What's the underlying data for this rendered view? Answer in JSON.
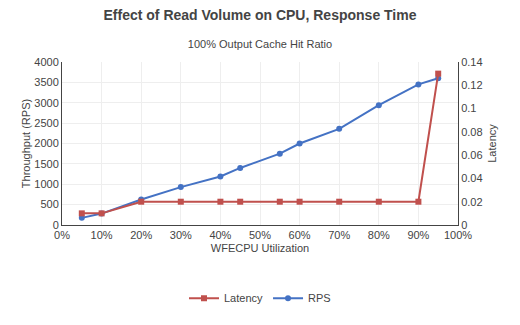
{
  "chart_data": {
    "type": "line",
    "title": "Effect of Read Volume on CPU, Response Time",
    "subtitle": "100% Output Cache Hit Ratio",
    "xlabel": "WFECPU Utilization",
    "ylabel": "Throughput (RPS)",
    "y2label": "Latency",
    "x": [
      0.05,
      0.1,
      0.2,
      0.3,
      0.4,
      0.45,
      0.55,
      0.6,
      0.7,
      0.8,
      0.9,
      0.95
    ],
    "series": [
      {
        "name": "RPS",
        "color": "#4472C4",
        "marker": "circle",
        "values": [
          175,
          280,
          625,
          930,
          1190,
          1400,
          1750,
          2000,
          2360,
          2940,
          3450,
          3600
        ]
      },
      {
        "name": "Latency",
        "color": "#C0504D",
        "marker": "square",
        "axis": "y2",
        "values": [
          0.01,
          0.01,
          0.02,
          0.02,
          0.02,
          0.02,
          0.02,
          0.02,
          0.02,
          0.02,
          0.02,
          0.13
        ]
      }
    ],
    "xlim": [
      0.0,
      1.0
    ],
    "xticks": [
      {
        "value": 0.0,
        "label": "0%"
      },
      {
        "value": 0.1,
        "label": "10%"
      },
      {
        "value": 0.2,
        "label": "20%"
      },
      {
        "value": 0.3,
        "label": "30%"
      },
      {
        "value": 0.4,
        "label": "40%"
      },
      {
        "value": 0.5,
        "label": "50%"
      },
      {
        "value": 0.6,
        "label": "60%"
      },
      {
        "value": 0.7,
        "label": "70%"
      },
      {
        "value": 0.8,
        "label": "80%"
      },
      {
        "value": 0.9,
        "label": "90%"
      },
      {
        "value": 1.0,
        "label": "100%"
      }
    ],
    "ylim": [
      0,
      4000
    ],
    "yticks": [
      0,
      500,
      1000,
      1500,
      2000,
      2500,
      3000,
      3500,
      4000
    ],
    "y2lim": [
      0,
      0.14
    ],
    "y2ticks": [
      0,
      0.02,
      0.04,
      0.06,
      0.08,
      0.1,
      0.12,
      0.14
    ],
    "grid": true,
    "legend": "bottom"
  }
}
